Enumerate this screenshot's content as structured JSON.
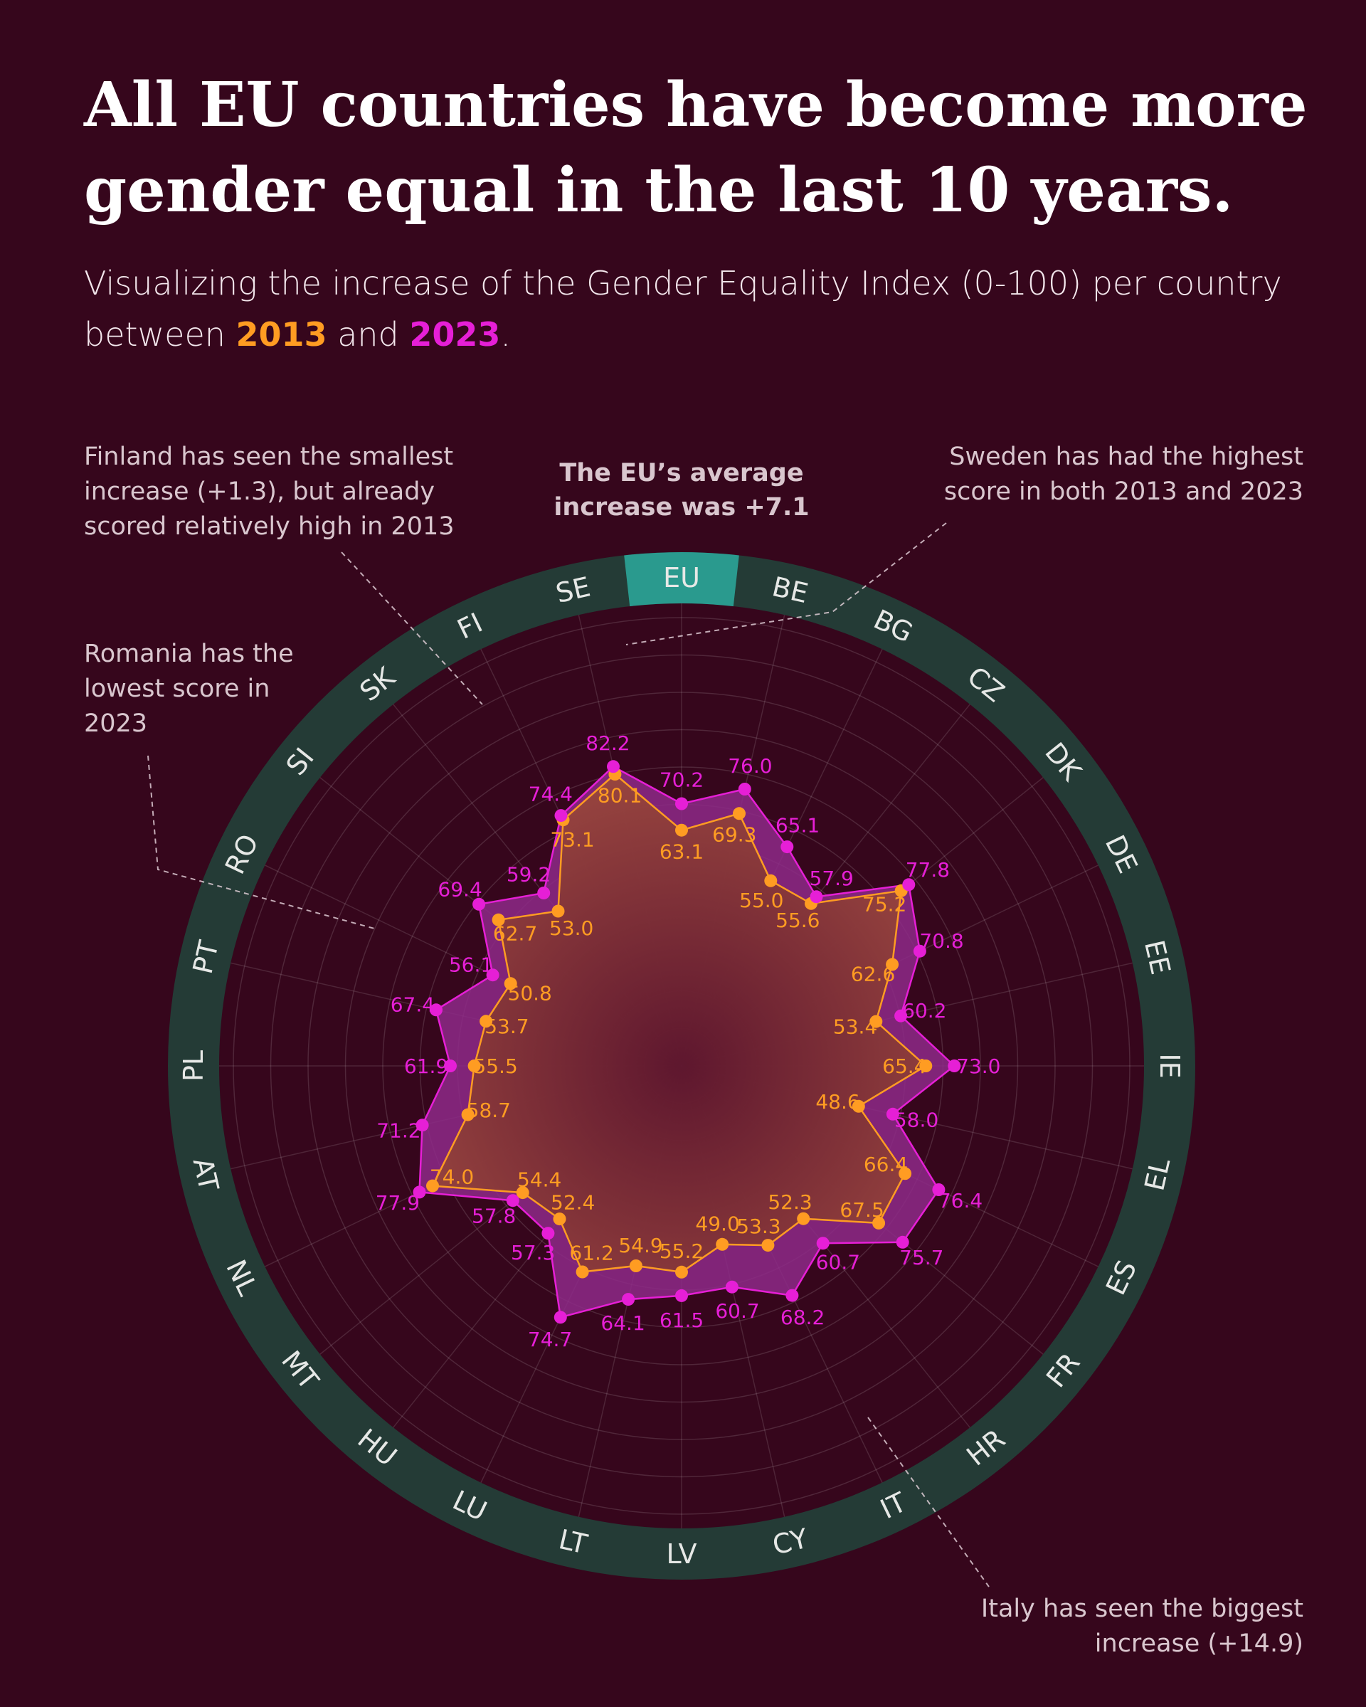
{
  "title": "All EU countries have become more gender equal in the last 10 years.",
  "subtitle": {
    "before": "Visualizing the increase of the Gender Equality Index (0-100) per country between ",
    "year_a": "2013",
    "mid": " and ",
    "year_b": "2023",
    "after": "."
  },
  "colors": {
    "background": "#36061c",
    "ring": "#243b36",
    "ring_highlight": "#2a9a8e",
    "series_2013": "#ff9c22",
    "series_2023": "#e61fd6"
  },
  "annotations": {
    "center_top": [
      "The EU’s average",
      "increase was +7.1"
    ],
    "finland": [
      "Finland has seen the smallest",
      "increase (+1.3), but already",
      "scored relatively high in 2013"
    ],
    "sweden": [
      "Sweden has had the highest",
      "score in both 2013 and 2023"
    ],
    "romania": [
      "Romania has the",
      "lowest score in",
      "2023"
    ],
    "italy": [
      "Italy has seen the biggest",
      "increase (+14.9)"
    ]
  },
  "chart_data": {
    "type": "radar",
    "rlim": [
      0,
      100
    ],
    "categories": [
      "EU",
      "BE",
      "BG",
      "CZ",
      "DK",
      "DE",
      "EE",
      "IE",
      "EL",
      "ES",
      "FR",
      "HR",
      "IT",
      "CY",
      "LV",
      "LT",
      "LU",
      "HU",
      "MT",
      "NL",
      "AT",
      "PL",
      "PT",
      "RO",
      "SI",
      "SK",
      "FI",
      "SE"
    ],
    "highlight_category": "EU",
    "series": [
      {
        "name": "2013",
        "values": [
          63.1,
          69.3,
          55.0,
          55.6,
          75.2,
          62.6,
          53.4,
          65.4,
          48.6,
          66.4,
          67.5,
          52.3,
          53.3,
          49.0,
          55.2,
          54.9,
          61.2,
          52.4,
          54.4,
          74.0,
          58.7,
          55.5,
          53.7,
          50.8,
          62.7,
          53.0,
          73.1,
          80.1
        ]
      },
      {
        "name": "2023",
        "values": [
          70.2,
          76.0,
          65.1,
          57.9,
          77.8,
          70.8,
          60.2,
          73.0,
          58.0,
          76.4,
          75.7,
          60.7,
          68.2,
          60.7,
          61.5,
          64.1,
          74.7,
          57.3,
          57.8,
          77.9,
          71.2,
          61.9,
          67.4,
          56.1,
          69.4,
          59.2,
          74.4,
          82.2
        ]
      }
    ],
    "grid": true
  }
}
